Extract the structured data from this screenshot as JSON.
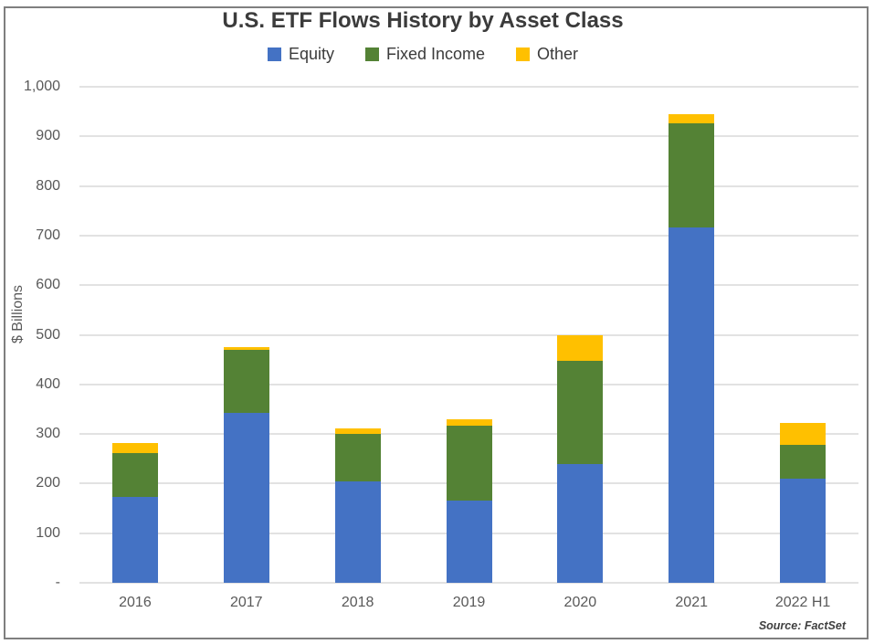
{
  "chart": {
    "title": "U.S. ETF Flows History by Asset Class",
    "ylabel": "$ Billions",
    "source": "Source: FactSet"
  },
  "chart_data": {
    "type": "bar",
    "stacked": true,
    "title": "U.S. ETF Flows History by Asset Class",
    "xlabel": "",
    "ylabel": "$ Billions",
    "categories": [
      "2016",
      "2017",
      "2018",
      "2019",
      "2020",
      "2021",
      "2022 H1"
    ],
    "series": [
      {
        "name": "Equity",
        "color": "#4472C4",
        "values": [
          174,
          343,
          205,
          165,
          240,
          716,
          210
        ]
      },
      {
        "name": "Fixed Income",
        "color": "#548235",
        "values": [
          88,
          126,
          95,
          152,
          207,
          210,
          68
        ]
      },
      {
        "name": "Other",
        "color": "#FFC000",
        "values": [
          20,
          7,
          12,
          12,
          53,
          18,
          44
        ]
      }
    ],
    "totals": [
      282,
      476,
      312,
      329,
      500,
      944,
      322
    ],
    "ylim": [
      0,
      1000
    ],
    "ytick_interval": 100,
    "ytick_labels": [
      "-",
      "100",
      "200",
      "300",
      "400",
      "500",
      "600",
      "700",
      "800",
      "900",
      "1,000"
    ],
    "grid": true,
    "legend_position": "top",
    "annotations": [
      "Source: FactSet"
    ]
  },
  "colors": {
    "frame_border": "#7f7f7f",
    "gridline": "#e2e2e2",
    "title_text": "#3b3b3b",
    "axis_text": "#595959",
    "source_text": "#404040",
    "background": "#ffffff"
  }
}
